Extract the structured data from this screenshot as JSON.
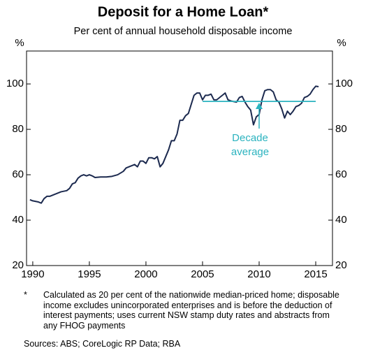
{
  "chart_data": {
    "type": "line",
    "title": "Deposit for a Home Loan*",
    "subtitle": "Per cent of annual household disposable income",
    "y_unit": "%",
    "xlim": [
      1989.45,
      2016.48
    ],
    "xticks": [
      1990,
      1995,
      2000,
      2005,
      2010,
      2015
    ],
    "ylim": [
      20,
      114.5
    ],
    "yticks": [
      20,
      40,
      60,
      80,
      100
    ],
    "series": [
      {
        "color": "#1c2a4f",
        "x": [
          1989.75,
          1990,
          1990.5,
          1990.75,
          1991,
          1991.25,
          1991.5,
          1992,
          1992.5,
          1993,
          1993.25,
          1993.5,
          1993.75,
          1994,
          1994.25,
          1994.5,
          1994.75,
          1995,
          1995.25,
          1995.5,
          1996,
          1996.5,
          1997,
          1997.5,
          1998,
          1998.25,
          1998.5,
          1999,
          1999.25,
          1999.5,
          1999.75,
          2000,
          2000.25,
          2000.5,
          2000.75,
          2001,
          2001.25,
          2001.5,
          2001.75,
          2002,
          2002.25,
          2002.5,
          2002.75,
          2003,
          2003.25,
          2003.5,
          2003.75,
          2004,
          2004.25,
          2004.5,
          2004.75,
          2005,
          2005.25,
          2005.5,
          2005.75,
          2006,
          2006.25,
          2006.5,
          2006.75,
          2007,
          2007.25,
          2007.5,
          2008,
          2008.25,
          2008.5,
          2008.75,
          2009,
          2009.25,
          2009.5,
          2009.75,
          2010,
          2010.25,
          2010.5,
          2010.75,
          2011,
          2011.25,
          2011.5,
          2011.75,
          2012,
          2012.25,
          2012.5,
          2012.75,
          2013,
          2013.25,
          2013.5,
          2013.75,
          2014,
          2014.25,
          2014.5,
          2014.75,
          2015,
          2015.25
        ],
        "values": [
          49,
          48.5,
          48,
          47.5,
          49.5,
          50.5,
          50.5,
          51.5,
          52.5,
          53,
          54,
          56,
          56.5,
          58.5,
          59.5,
          60,
          59.5,
          60,
          59.5,
          58.8,
          59,
          59,
          59.3,
          60,
          61.5,
          63,
          63.5,
          64.5,
          63.5,
          66,
          66,
          65,
          67.5,
          67.5,
          67,
          68,
          63.5,
          65,
          68,
          71,
          75,
          75,
          78,
          84,
          84,
          86,
          87,
          91,
          95,
          96,
          96,
          93,
          95,
          95,
          95.5,
          93,
          93,
          94,
          95,
          96,
          93,
          92.5,
          92,
          94,
          94.5,
          92,
          90,
          88.5,
          82,
          85.5,
          86.5,
          93,
          97,
          97.5,
          97.5,
          96.5,
          93,
          92,
          89,
          85,
          88,
          86.5,
          88,
          90,
          90.5,
          91.5,
          94,
          94.5,
          95.5,
          97.5,
          99,
          98.8
        ]
      },
      {
        "color": "#2bb3bf",
        "x": [
          2005,
          2015
        ],
        "values": [
          92.3,
          92.3
        ]
      }
    ],
    "annotation": [
      "Decade",
      "average"
    ],
    "footnote_mark": "*",
    "footnote": "Calculated as 20 per cent of the nationwide median-priced home; disposable income excludes unincorporated enterprises and is before the deduction of interest payments; uses current NSW stamp duty rates and abstracts from any FHOG payments",
    "sources": "Sources:   ABS; CoreLogic RP Data; RBA"
  }
}
